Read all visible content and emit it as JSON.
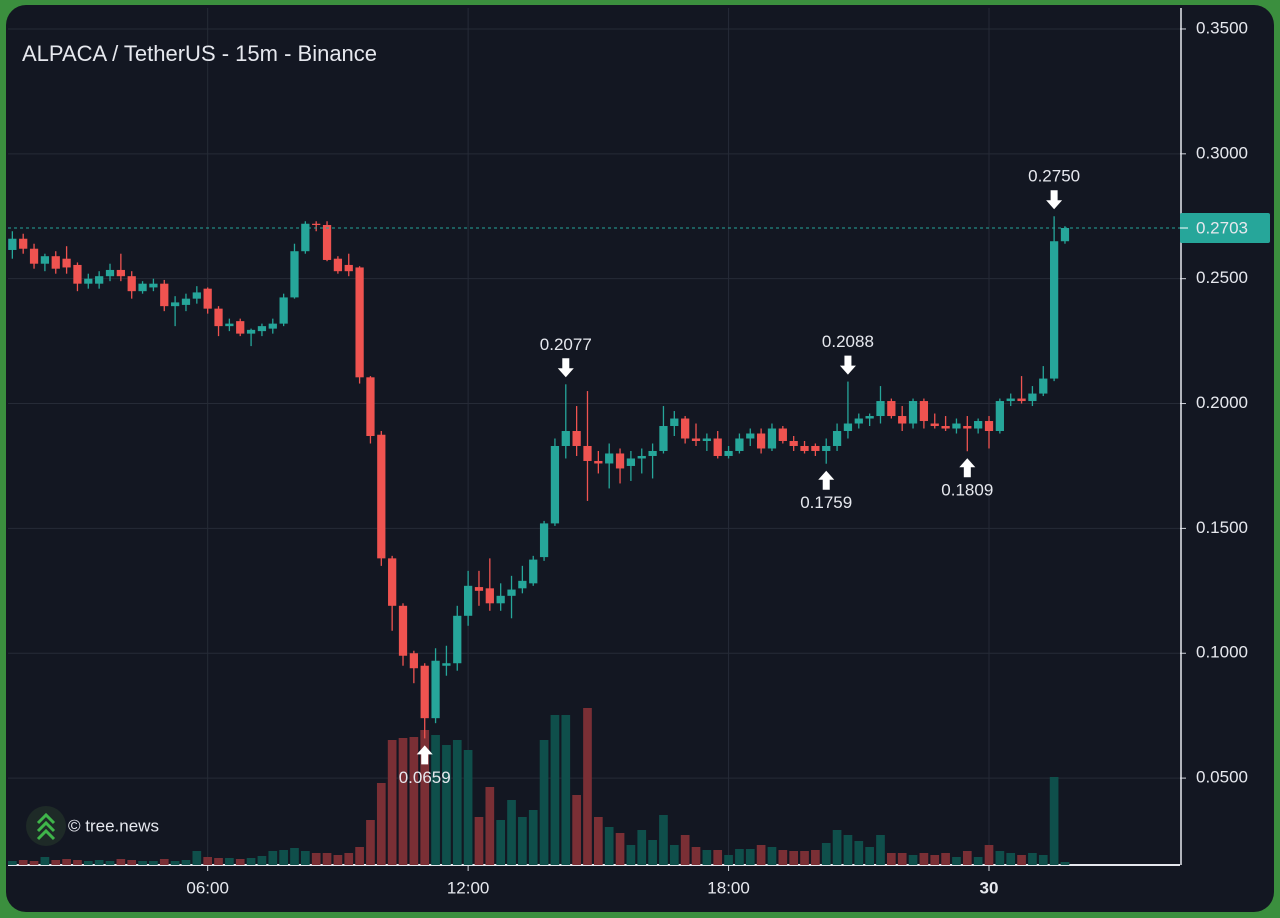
{
  "chart_data": {
    "type": "candlestick",
    "title": "ALPACA / TetherUS - 15m - Binance",
    "watermark": "© tree.news",
    "up_color": "#26a69a",
    "down_color": "#ef5350",
    "volume_up_color": "#0f4f4b",
    "volume_down_color": "#7a2f35",
    "grid": true,
    "xlim": [
      1.4,
      28.4
    ],
    "xticks": [
      {
        "value": 6,
        "label": "06:00"
      },
      {
        "value": 12,
        "label": "12:00"
      },
      {
        "value": 18,
        "label": "18:00"
      },
      {
        "value": 24,
        "label": "30"
      }
    ],
    "ylim": [
      0.0152,
      0.3584
    ],
    "yticks": [
      {
        "value": 0.05,
        "label": "0.0500"
      },
      {
        "value": 0.1,
        "label": "0.1000"
      },
      {
        "value": 0.15,
        "label": "0.1500"
      },
      {
        "value": 0.2,
        "label": "0.2000"
      },
      {
        "value": 0.25,
        "label": "0.2500"
      },
      {
        "value": 0.3,
        "label": "0.3000"
      },
      {
        "value": 0.35,
        "label": "0.3500"
      }
    ],
    "x": [
      1.5,
      1.75,
      2,
      2.25,
      2.5,
      2.75,
      3,
      3.25,
      3.5,
      3.75,
      4,
      4.25,
      4.5,
      4.75,
      5,
      5.25,
      5.5,
      5.75,
      6,
      6.25,
      6.5,
      6.75,
      7,
      7.25,
      7.5,
      7.75,
      8,
      8.25,
      8.5,
      8.75,
      9,
      9.25,
      9.5,
      9.75,
      10,
      10.25,
      10.5,
      10.75,
      11,
      11.25,
      11.5,
      11.75,
      12,
      12.25,
      12.5,
      12.75,
      13,
      13.25,
      13.5,
      13.75,
      14,
      14.25,
      14.5,
      14.75,
      15,
      15.25,
      15.5,
      15.75,
      16,
      16.25,
      16.5,
      16.75,
      17,
      17.25,
      17.5,
      17.75,
      18,
      18.25,
      18.5,
      18.75,
      19,
      19.25,
      19.5,
      19.75,
      20,
      20.25,
      20.5,
      20.75,
      21,
      21.25,
      21.5,
      21.75,
      22,
      22.25,
      22.5,
      22.75,
      23,
      23.25,
      23.5,
      23.75,
      24,
      24.25,
      24.5,
      24.75,
      25,
      25.25,
      25.5,
      25.75
    ],
    "open": [
      0.2615,
      0.266,
      0.262,
      0.256,
      0.259,
      0.258,
      0.2555,
      0.248,
      0.248,
      0.251,
      0.2535,
      0.251,
      0.245,
      0.2465,
      0.248,
      0.239,
      0.2395,
      0.242,
      0.246,
      0.238,
      0.231,
      0.233,
      0.228,
      0.229,
      0.23,
      0.232,
      0.2425,
      0.261,
      0.272,
      0.2715,
      0.258,
      0.2555,
      0.2545,
      0.2105,
      0.1875,
      0.138,
      0.119,
      0.1,
      0.095,
      0.074,
      0.095,
      0.096,
      0.115,
      0.1265,
      0.126,
      0.12,
      0.123,
      0.126,
      0.128,
      0.1385,
      0.152,
      0.183,
      0.189,
      0.183,
      0.177,
      0.176,
      0.18,
      0.175,
      0.178,
      0.179,
      0.181,
      0.191,
      0.194,
      0.186,
      0.185,
      0.186,
      0.179,
      0.181,
      0.186,
      0.188,
      0.182,
      0.19,
      0.185,
      0.183,
      0.183,
      0.181,
      0.183,
      0.189,
      0.192,
      0.194,
      0.195,
      0.201,
      0.195,
      0.192,
      0.201,
      0.192,
      0.191,
      0.19,
      0.191,
      0.19,
      0.193,
      0.189,
      0.201,
      0.202,
      0.201,
      0.204,
      0.21,
      0.265
    ],
    "high": [
      0.269,
      0.268,
      0.264,
      0.26,
      0.261,
      0.263,
      0.2565,
      0.252,
      0.253,
      0.256,
      0.26,
      0.253,
      0.249,
      0.25,
      0.2495,
      0.243,
      0.244,
      0.247,
      0.2465,
      0.239,
      0.234,
      0.234,
      0.23,
      0.232,
      0.234,
      0.244,
      0.264,
      0.273,
      0.273,
      0.273,
      0.259,
      0.26,
      0.255,
      0.211,
      0.189,
      0.139,
      0.12,
      0.101,
      0.096,
      0.102,
      0.103,
      0.119,
      0.133,
      0.133,
      0.138,
      0.128,
      0.131,
      0.135,
      0.139,
      0.153,
      0.186,
      0.2077,
      0.199,
      0.205,
      0.181,
      0.184,
      0.182,
      0.181,
      0.182,
      0.184,
      0.199,
      0.197,
      0.195,
      0.192,
      0.188,
      0.189,
      0.183,
      0.188,
      0.19,
      0.19,
      0.192,
      0.191,
      0.187,
      0.185,
      0.184,
      0.186,
      0.192,
      0.2088,
      0.196,
      0.196,
      0.207,
      0.202,
      0.199,
      0.202,
      0.202,
      0.196,
      0.195,
      0.194,
      0.195,
      0.194,
      0.195,
      0.202,
      0.204,
      0.211,
      0.207,
      0.215,
      0.275,
      0.271
    ],
    "low": [
      0.258,
      0.26,
      0.254,
      0.253,
      0.252,
      0.252,
      0.245,
      0.246,
      0.246,
      0.249,
      0.249,
      0.242,
      0.244,
      0.245,
      0.237,
      0.231,
      0.237,
      0.24,
      0.236,
      0.227,
      0.229,
      0.227,
      0.223,
      0.227,
      0.228,
      0.231,
      0.242,
      0.26,
      0.269,
      0.257,
      0.252,
      0.251,
      0.208,
      0.184,
      0.135,
      0.109,
      0.095,
      0.088,
      0.0659,
      0.072,
      0.091,
      0.093,
      0.111,
      0.119,
      0.117,
      0.117,
      0.114,
      0.124,
      0.127,
      0.137,
      0.151,
      0.178,
      0.179,
      0.161,
      0.172,
      0.166,
      0.168,
      0.169,
      0.172,
      0.17,
      0.18,
      0.187,
      0.184,
      0.183,
      0.181,
      0.178,
      0.178,
      0.18,
      0.183,
      0.18,
      0.181,
      0.184,
      0.181,
      0.18,
      0.179,
      0.1759,
      0.181,
      0.186,
      0.19,
      0.191,
      0.192,
      0.194,
      0.189,
      0.19,
      0.19,
      0.19,
      0.189,
      0.188,
      0.1809,
      0.188,
      0.182,
      0.188,
      0.199,
      0.2,
      0.199,
      0.203,
      0.209,
      0.264
    ],
    "close": [
      0.266,
      0.262,
      0.256,
      0.259,
      0.254,
      0.2545,
      0.248,
      0.25,
      0.251,
      0.2535,
      0.251,
      0.245,
      0.248,
      0.248,
      0.239,
      0.2405,
      0.242,
      0.2445,
      0.238,
      0.231,
      0.232,
      0.228,
      0.2295,
      0.231,
      0.232,
      0.2425,
      0.261,
      0.272,
      0.2715,
      0.2575,
      0.253,
      0.253,
      0.2105,
      0.187,
      0.138,
      0.119,
      0.099,
      0.094,
      0.074,
      0.097,
      0.096,
      0.115,
      0.127,
      0.125,
      0.12,
      0.123,
      0.1255,
      0.129,
      0.1375,
      0.152,
      0.183,
      0.189,
      0.183,
      0.177,
      0.176,
      0.18,
      0.174,
      0.178,
      0.179,
      0.181,
      0.191,
      0.194,
      0.186,
      0.185,
      0.186,
      0.179,
      0.181,
      0.186,
      0.188,
      0.182,
      0.19,
      0.185,
      0.183,
      0.181,
      0.181,
      0.183,
      0.189,
      0.192,
      0.194,
      0.195,
      0.201,
      0.195,
      0.192,
      0.201,
      0.193,
      0.191,
      0.19,
      0.192,
      0.19,
      0.193,
      0.189,
      0.201,
      0.202,
      0.201,
      0.204,
      0.21,
      0.265,
      0.2703
    ],
    "volume_ylim": [
      0,
      857
    ],
    "volume": [
      4,
      5,
      4,
      8,
      5,
      6,
      5,
      4,
      5,
      4,
      6,
      5,
      4,
      4,
      6,
      4,
      5,
      14,
      8,
      7,
      7,
      6,
      7,
      9,
      14,
      15,
      17,
      14,
      12,
      12,
      10,
      12,
      18,
      45,
      82,
      125,
      127,
      128,
      135,
      130,
      120,
      125,
      115,
      48,
      78,
      45,
      65,
      48,
      55,
      125,
      150,
      150,
      70,
      157,
      48,
      38,
      32,
      20,
      35,
      25,
      50,
      20,
      30,
      18,
      15,
      15,
      10,
      16,
      16,
      20,
      18,
      15,
      14,
      14,
      15,
      22,
      35,
      30,
      24,
      18,
      30,
      12,
      12,
      10,
      12,
      10,
      12,
      8,
      14,
      8,
      20,
      14,
      12,
      10,
      12,
      10,
      88,
      3
    ],
    "last_price": {
      "value": 0.2703,
      "label": "0.2703"
    },
    "annotations": [
      {
        "x": 25.5,
        "value": 0.275,
        "label": "0.2750"
      },
      {
        "x": 14.25,
        "value": 0.2077,
        "label": "0.2077"
      },
      {
        "x": 20.75,
        "value": 0.2088,
        "label": "0.2088"
      },
      {
        "x": 20.25,
        "value": 0.1759,
        "label": "0.1759"
      },
      {
        "x": 23.5,
        "value": 0.1809,
        "label": "0.1809"
      },
      {
        "x": 11,
        "value": 0.0659,
        "label": "0.0659"
      }
    ]
  }
}
